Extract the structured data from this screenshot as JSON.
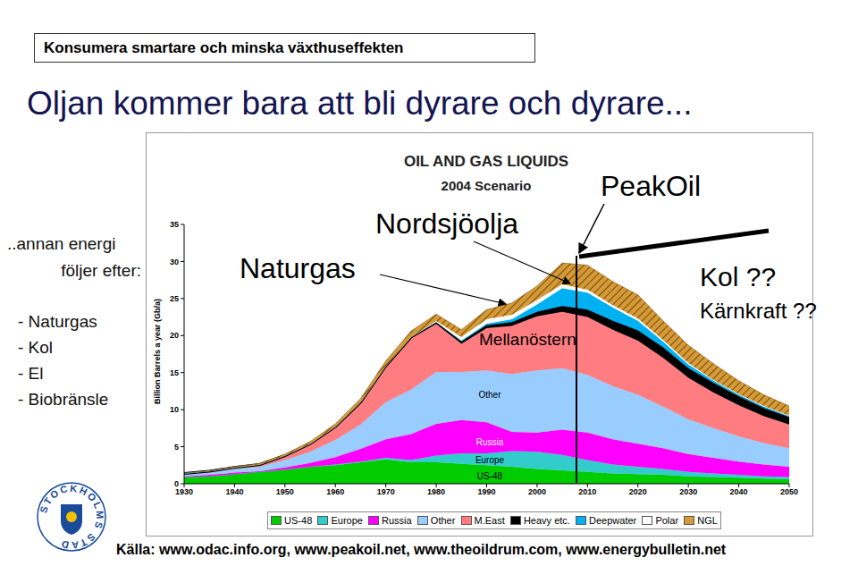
{
  "slide": {
    "header": "Konsumera smartare och minska växthuseffekten",
    "title": "Oljan kommer bara att bli dyrare och dyrare...",
    "side_text": [
      "..annan energi",
      "följer efter:"
    ],
    "side_list": [
      "- Naturgas",
      "- Kol",
      "- El",
      "- Biobränsle"
    ],
    "source": "Källa: www.odac.info.org, www.peakoil.net, www.theoildrum.com, www.energybulletin.net",
    "logo_text": "STOCKHOLMS STAD"
  },
  "chart_data": {
    "type": "area",
    "stacked": true,
    "title": "OIL AND GAS LIQUIDS",
    "subtitle": "2004 Scenario",
    "y_label": "Billion Barrels a year (Gb/a)",
    "grid": false,
    "x": [
      1930,
      1935,
      1940,
      1945,
      1950,
      1955,
      1960,
      1965,
      1970,
      1975,
      1980,
      1985,
      1990,
      1995,
      2000,
      2005,
      2010,
      2015,
      2020,
      2025,
      2030,
      2035,
      2040,
      2045,
      2050
    ],
    "xlim": [
      1930,
      2050
    ],
    "xticks": [
      1930,
      1940,
      1950,
      1960,
      1970,
      1980,
      1990,
      2000,
      2010,
      2020,
      2030,
      2040,
      2050
    ],
    "ylim": [
      0,
      35
    ],
    "yticks": [
      0,
      5,
      10,
      15,
      20,
      25,
      30,
      35
    ],
    "series": [
      {
        "name": "US-48",
        "color": "#00cc00",
        "values": [
          0.9,
          1.0,
          1.3,
          1.6,
          1.9,
          2.3,
          2.5,
          2.9,
          3.3,
          2.9,
          2.9,
          2.7,
          2.5,
          2.3,
          2.0,
          1.8,
          1.6,
          1.4,
          1.3,
          1.2,
          1.0,
          0.9,
          0.8,
          0.7,
          0.6
        ]
      },
      {
        "name": "Europe",
        "color": "#33cccc",
        "values": [
          0,
          0,
          0,
          0,
          0,
          0,
          0.1,
          0.1,
          0.2,
          0.3,
          0.9,
          1.4,
          1.6,
          2.1,
          2.3,
          2.1,
          1.6,
          1.2,
          1.0,
          0.8,
          0.6,
          0.5,
          0.4,
          0.3,
          0.3
        ]
      },
      {
        "name": "Russia",
        "color": "#ff00ff",
        "values": [
          0.1,
          0.2,
          0.2,
          0.1,
          0.3,
          0.5,
          1.0,
          1.7,
          2.5,
          3.5,
          4.3,
          4.5,
          4.2,
          2.6,
          2.6,
          3.4,
          3.7,
          3.4,
          3.1,
          2.8,
          2.4,
          2.1,
          1.8,
          1.6,
          1.4
        ]
      },
      {
        "name": "Other",
        "color": "#99ccff",
        "values": [
          0.3,
          0.4,
          0.5,
          0.6,
          1.0,
          1.5,
          2.3,
          3.3,
          5.0,
          6.0,
          7.0,
          6.5,
          7.0,
          7.8,
          8.4,
          8.3,
          7.8,
          7.2,
          6.6,
          5.6,
          4.7,
          4.0,
          3.4,
          2.9,
          2.5
        ]
      },
      {
        "name": "M.East",
        "color": "#ff7c80",
        "values": [
          0.1,
          0.1,
          0.2,
          0.3,
          0.6,
          1.1,
          1.8,
          3.0,
          4.9,
          7.0,
          6.5,
          3.8,
          5.7,
          6.5,
          7.3,
          7.6,
          7.8,
          7.6,
          7.3,
          6.6,
          5.6,
          4.8,
          4.2,
          3.6,
          3.2
        ]
      },
      {
        "name": "Heavy etc.",
        "color": "#000000",
        "values": [
          0,
          0,
          0,
          0,
          0,
          0,
          0,
          0,
          0,
          0.1,
          0.2,
          0.3,
          0.4,
          0.5,
          0.6,
          0.8,
          1.0,
          1.2,
          1.4,
          1.4,
          1.3,
          1.3,
          1.2,
          1.1,
          1.0
        ]
      },
      {
        "name": "Deepwater",
        "color": "#00b0f0",
        "values": [
          0,
          0,
          0,
          0,
          0,
          0,
          0,
          0,
          0,
          0,
          0,
          0.1,
          0.2,
          0.4,
          1.0,
          2.4,
          2.3,
          1.8,
          1.3,
          0.8,
          0.5,
          0.3,
          0.2,
          0.2,
          0.1
        ]
      },
      {
        "name": "Polar",
        "color": "#ffffff",
        "values": [
          0,
          0,
          0,
          0,
          0,
          0,
          0,
          0,
          0,
          0,
          0.2,
          0.5,
          0.6,
          0.6,
          0.6,
          0.5,
          0.4,
          0.3,
          0.3,
          0.2,
          0.2,
          0.1,
          0.1,
          0.1,
          0.1
        ]
      },
      {
        "name": "NGL",
        "color": "#d49a3a",
        "values": [
          0,
          0.05,
          0.1,
          0.15,
          0.2,
          0.3,
          0.4,
          0.5,
          0.7,
          0.8,
          0.9,
          1.0,
          1.3,
          1.6,
          1.9,
          2.9,
          3.3,
          3.2,
          3.2,
          2.6,
          2.4,
          2.2,
          1.8,
          1.5,
          1.3
        ]
      }
    ],
    "area_labels": [
      "Other",
      "Russia",
      "Europe",
      "US-48"
    ],
    "annotations": [
      "Naturgas",
      "Nordsjöolja",
      "PeakOil",
      "Mellanöstern",
      "Kol ??",
      "Kärnkraft ??"
    ]
  }
}
